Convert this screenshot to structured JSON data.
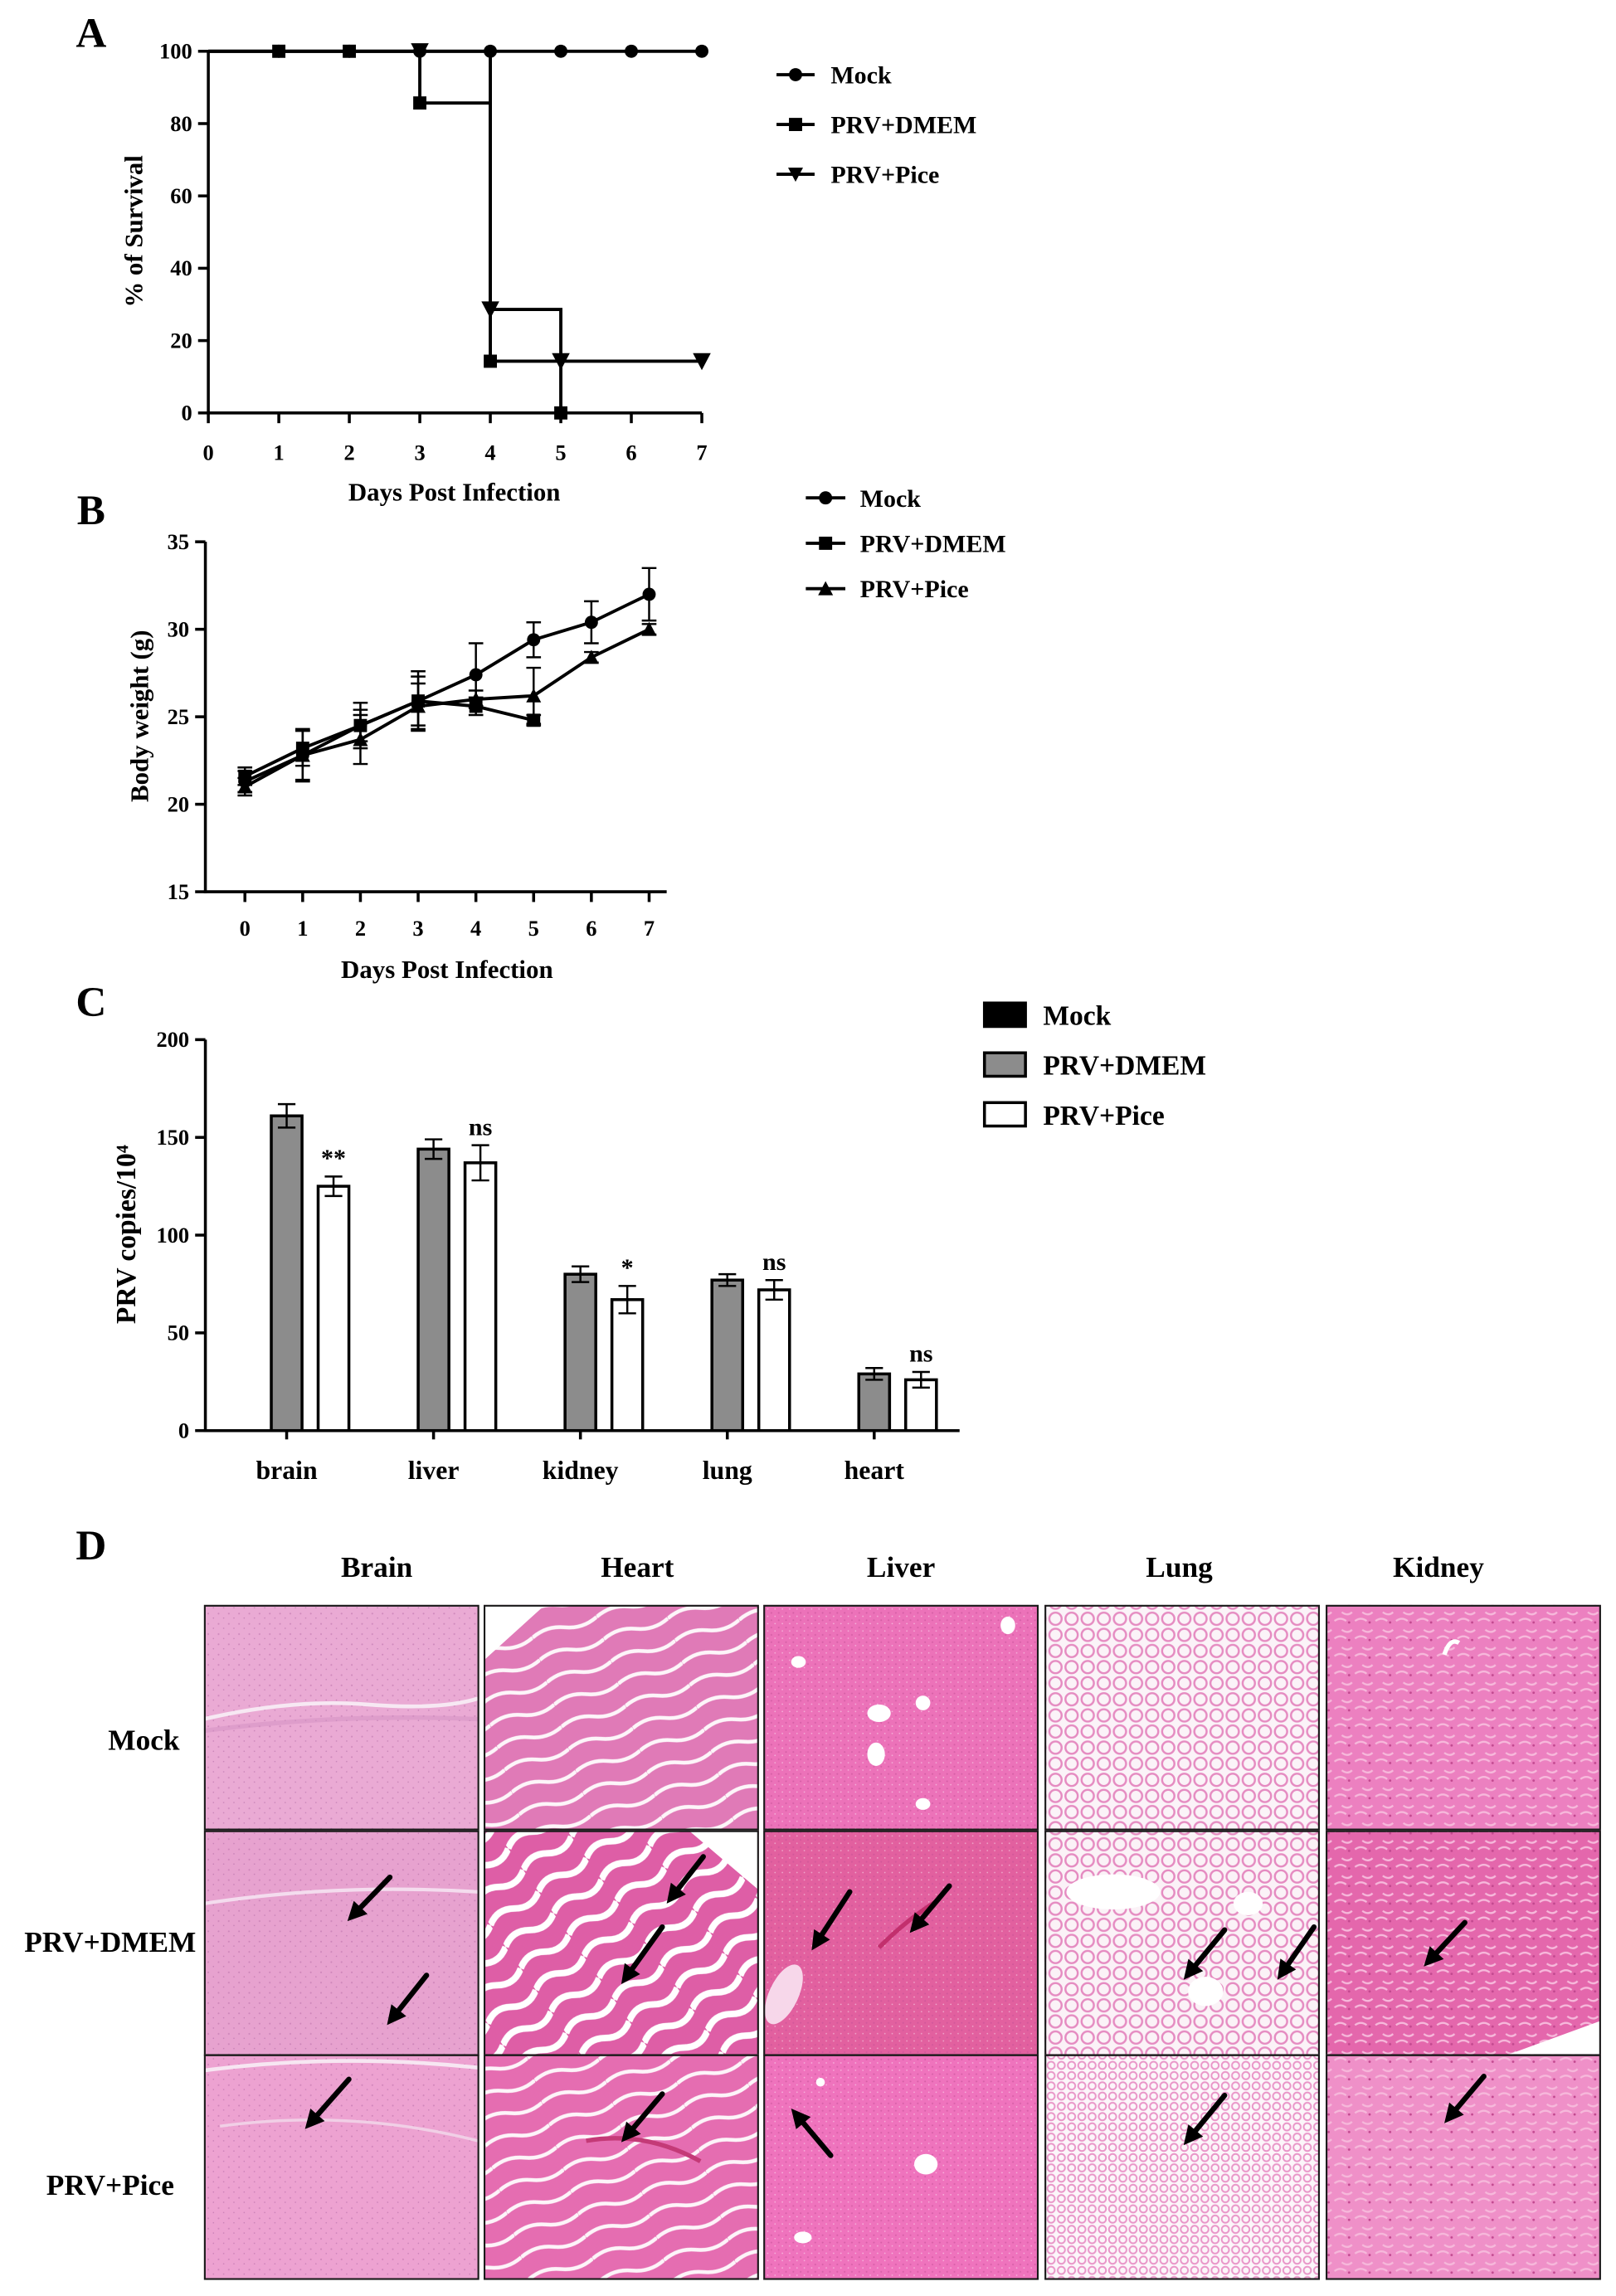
{
  "chart_data": [
    {
      "panel": "A",
      "type": "line",
      "line_style": "step",
      "xlabel": "Days Post Infection",
      "ylabel": "% of Survival",
      "xlim": [
        0,
        7
      ],
      "ylim": [
        0,
        100
      ],
      "xticks": [
        0,
        1,
        2,
        3,
        4,
        5,
        6,
        7
      ],
      "yticks": [
        0,
        20,
        40,
        60,
        80,
        100
      ],
      "grid": false,
      "legend_position": "right",
      "series": [
        {
          "name": "Mock",
          "marker": "circle",
          "color": "#000000",
          "x": [
            0,
            1,
            2,
            3,
            4,
            5,
            6,
            7
          ],
          "y": [
            100,
            100,
            100,
            100,
            100,
            100,
            100,
            100
          ]
        },
        {
          "name": "PRV+DMEM",
          "marker": "square",
          "color": "#000000",
          "x": [
            0,
            1,
            2,
            3,
            4,
            5
          ],
          "y": [
            100,
            100,
            100,
            85.7,
            14.3,
            0
          ]
        },
        {
          "name": "PRV+Pice",
          "marker": "triangle-down",
          "color": "#000000",
          "x": [
            0,
            3,
            4,
            5,
            7
          ],
          "y": [
            100,
            100,
            28.6,
            14.3,
            14.3
          ]
        }
      ]
    },
    {
      "panel": "B",
      "type": "line",
      "xlabel": "Days Post Infection",
      "ylabel": "Body weight (g)",
      "ylim": [
        15,
        35
      ],
      "xticks": [
        0,
        1,
        2,
        3,
        4,
        5,
        6,
        7
      ],
      "yticks": [
        15,
        20,
        25,
        30,
        35
      ],
      "grid": false,
      "legend_position": "right",
      "series": [
        {
          "name": "Mock",
          "marker": "circle",
          "color": "#000000",
          "x": [
            0,
            1,
            2,
            3,
            4,
            5,
            6,
            7
          ],
          "y": [
            21.3,
            22.8,
            24.5,
            25.9,
            27.4,
            29.4,
            30.4,
            32.0
          ],
          "error": [
            0.6,
            1.5,
            1.3,
            1.7,
            1.8,
            1.0,
            1.2,
            1.5
          ]
        },
        {
          "name": "PRV+DMEM",
          "marker": "square",
          "color": "#000000",
          "x": [
            0,
            1,
            2,
            3,
            4,
            5
          ],
          "y": [
            21.6,
            23.2,
            24.5,
            25.9,
            25.6,
            24.8
          ],
          "error": [
            0.5,
            1.0,
            0.9,
            1.4,
            0.5,
            0.3
          ]
        },
        {
          "name": "PRV+Pice",
          "marker": "triangle-up",
          "color": "#000000",
          "x": [
            0,
            1,
            2,
            3,
            4,
            5,
            6,
            7
          ],
          "y": [
            21.0,
            22.8,
            23.7,
            25.6,
            26.0,
            26.2,
            28.4,
            30.0
          ],
          "error": [
            0.5,
            1.4,
            1.4,
            1.3,
            0.5,
            1.6,
            0.3,
            0.3
          ]
        }
      ]
    },
    {
      "panel": "C",
      "type": "bar",
      "ylabel": "PRV copies/10⁴",
      "ylim": [
        0,
        200
      ],
      "yticks": [
        0,
        50,
        100,
        150,
        200
      ],
      "categories": [
        "brain",
        "liver",
        "kidney",
        "lung",
        "heart"
      ],
      "grid": false,
      "legend_position": "right",
      "series": [
        {
          "name": "Mock",
          "color": "#000000",
          "values": [
            0,
            0,
            0,
            0,
            0
          ]
        },
        {
          "name": "PRV+DMEM",
          "color": "#8c8c8c",
          "values": [
            161,
            144,
            80,
            77,
            29
          ],
          "error": [
            6,
            5,
            4,
            3,
            3
          ]
        },
        {
          "name": "PRV+Pice",
          "color": "#ffffff",
          "values": [
            125,
            137,
            67,
            72,
            26
          ],
          "error": [
            5,
            9,
            7,
            5,
            4
          ],
          "annotations": [
            "**",
            "ns",
            "*",
            "ns",
            "ns"
          ]
        }
      ]
    }
  ],
  "histology": {
    "panel_label": "D",
    "columns": [
      "Brain",
      "Heart",
      "Liver",
      "Lung",
      "Kidney"
    ],
    "rows": [
      "Mock",
      "PRV+DMEM",
      "PRV+Pice"
    ]
  }
}
